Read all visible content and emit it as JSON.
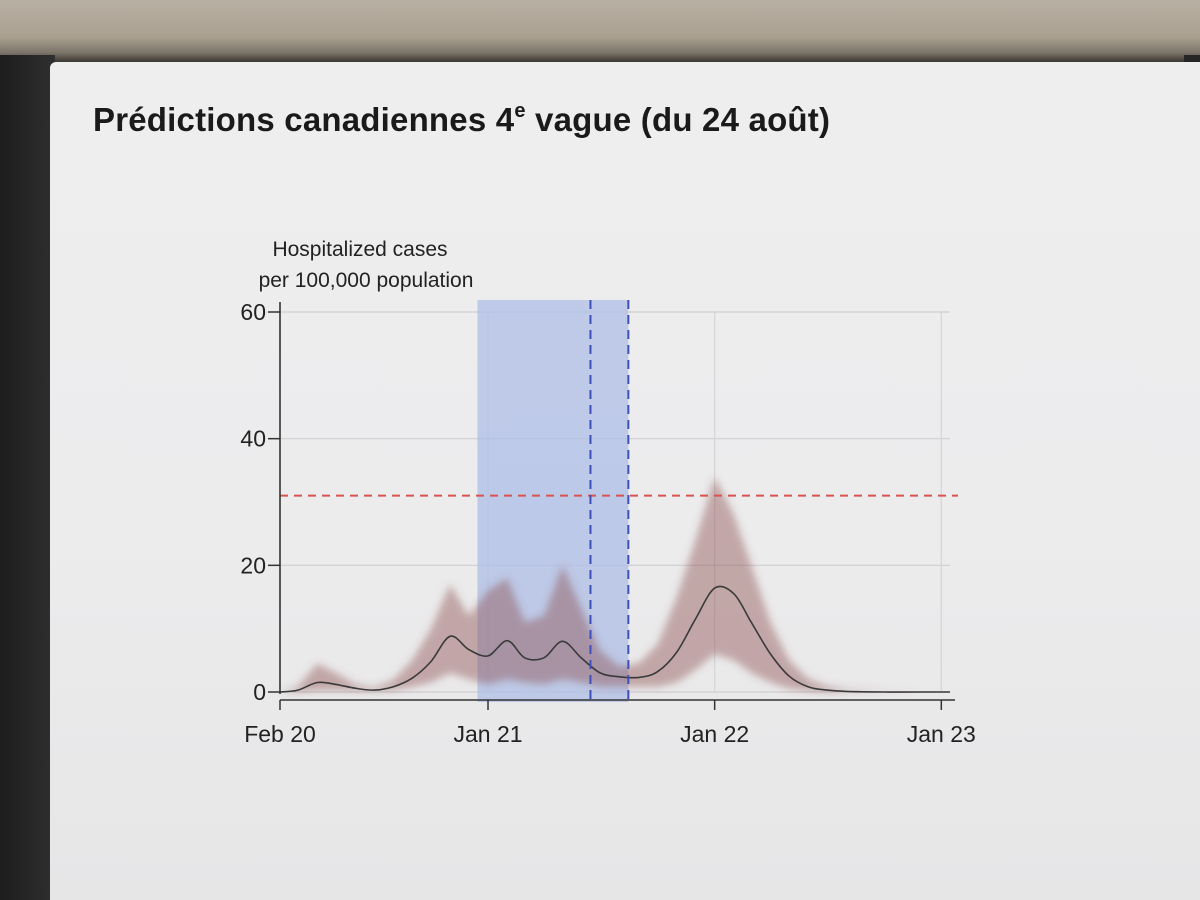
{
  "slide": {
    "title_main": "Prédictions canadiennes 4",
    "title_sup": "e",
    "title_rest": " vague (du 24 août)"
  },
  "chart_data": {
    "type": "line",
    "title": "Prédictions canadiennes 4e vague (du 24 août)",
    "ylabel_line1": "Hospitalized cases",
    "ylabel_line2": "per 100,000 population",
    "xlabel": "",
    "x_ticks": [
      "Feb 20",
      "Jan 21",
      "Jan 22",
      "Jan 23"
    ],
    "y_ticks": [
      "0",
      "20",
      "40",
      "60"
    ],
    "ylim": [
      0,
      60
    ],
    "xlim": [
      "2020-02-01",
      "2023-01-15"
    ],
    "grid": true,
    "threshold_line": {
      "value": 31,
      "color": "#d9534f",
      "style": "dashed"
    },
    "shaded_region": {
      "start": "2020-12-15",
      "end": "2021-08-15",
      "color": "#aebde6"
    },
    "vertical_lines": [
      {
        "date": "2021-06-15",
        "color": "#3d4fb8",
        "style": "dashed"
      },
      {
        "date": "2021-08-15",
        "color": "#3d4fb8",
        "style": "dashed"
      }
    ],
    "series": [
      {
        "type": "median",
        "color": "#3a3a3a",
        "x": [
          "2020-02-01",
          "2020-03-01",
          "2020-04-01",
          "2020-05-01",
          "2020-06-01",
          "2020-07-01",
          "2020-08-01",
          "2020-09-01",
          "2020-10-01",
          "2020-11-01",
          "2020-12-01",
          "2021-01-01",
          "2021-02-01",
          "2021-03-01",
          "2021-04-01",
          "2021-05-01",
          "2021-06-01",
          "2021-07-01",
          "2021-08-01",
          "2021-09-01",
          "2021-10-01",
          "2021-11-01",
          "2021-12-01",
          "2022-01-01",
          "2022-02-01",
          "2022-03-01",
          "2022-04-01",
          "2022-05-01",
          "2022-06-01",
          "2022-07-01",
          "2022-08-01",
          "2022-10-01",
          "2022-12-01",
          "2023-01-15"
        ],
        "values": [
          0,
          0.3,
          1.5,
          1.2,
          0.6,
          0.3,
          0.8,
          2.2,
          4.8,
          8.8,
          6.7,
          5.7,
          8.1,
          5.4,
          5.4,
          8.0,
          5.3,
          3.0,
          2.4,
          2.3,
          3.2,
          6.3,
          11.5,
          16.4,
          15.5,
          11.0,
          6.0,
          2.5,
          0.8,
          0.3,
          0.1,
          0,
          0,
          0
        ]
      },
      {
        "type": "uncertainty-upper",
        "color": "#8a4a48",
        "x": [
          "2020-02-01",
          "2020-03-01",
          "2020-04-01",
          "2020-05-01",
          "2020-06-01",
          "2020-07-01",
          "2020-08-01",
          "2020-09-01",
          "2020-10-01",
          "2020-11-01",
          "2020-12-01",
          "2021-01-01",
          "2021-02-01",
          "2021-03-01",
          "2021-04-01",
          "2021-05-01",
          "2021-06-01",
          "2021-07-01",
          "2021-08-01",
          "2021-09-01",
          "2021-10-01",
          "2021-11-01",
          "2021-12-01",
          "2022-01-01",
          "2022-02-01",
          "2022-03-01",
          "2022-04-01",
          "2022-05-01",
          "2022-06-01",
          "2022-07-01",
          "2022-08-01",
          "2022-10-01",
          "2022-12-01",
          "2023-01-15"
        ],
        "values": [
          0,
          0.8,
          4.5,
          3.0,
          1.2,
          0.7,
          1.8,
          5.0,
          10.0,
          17.0,
          12.0,
          16.0,
          18.0,
          11.0,
          12.0,
          20.0,
          13.0,
          6.5,
          4.0,
          4.5,
          7.5,
          15.0,
          24.0,
          34.0,
          28.0,
          20.0,
          11.0,
          5.0,
          2.0,
          0.9,
          0.4,
          0.1,
          0,
          0
        ]
      },
      {
        "type": "uncertainty-lower",
        "color": "#8a4a48",
        "x": [
          "2020-02-01",
          "2020-03-01",
          "2020-04-01",
          "2020-05-01",
          "2020-06-01",
          "2020-07-01",
          "2020-08-01",
          "2020-09-01",
          "2020-10-01",
          "2020-11-01",
          "2020-12-01",
          "2021-01-01",
          "2021-02-01",
          "2021-03-01",
          "2021-04-01",
          "2021-05-01",
          "2021-06-01",
          "2021-07-01",
          "2021-08-01",
          "2021-09-01",
          "2021-10-01",
          "2021-11-01",
          "2021-12-01",
          "2022-01-01",
          "2022-02-01",
          "2022-03-01",
          "2022-04-01",
          "2022-05-01",
          "2022-06-01",
          "2022-07-01",
          "2022-08-01",
          "2022-10-01",
          "2022-12-01",
          "2023-01-15"
        ],
        "values": [
          0,
          0,
          0.3,
          0.3,
          0.2,
          0.1,
          0.3,
          0.8,
          1.5,
          3.0,
          2.0,
          1.2,
          2.0,
          1.5,
          1.2,
          2.0,
          1.5,
          0.8,
          0.8,
          0.8,
          0.8,
          1.5,
          3.5,
          6.0,
          5.0,
          3.0,
          1.5,
          0.5,
          0.2,
          0,
          0,
          0,
          0,
          0
        ]
      }
    ]
  }
}
